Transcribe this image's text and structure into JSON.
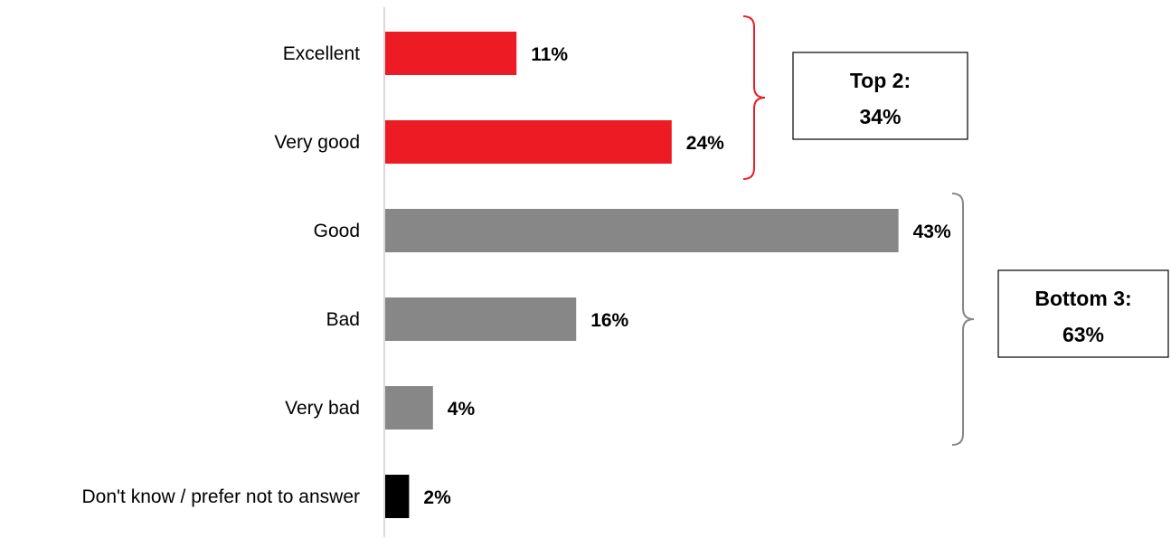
{
  "chart_data": {
    "type": "bar",
    "orientation": "horizontal",
    "categories": [
      "Excellent",
      "Very good",
      "Good",
      "Bad",
      "Very bad",
      "Don't know / prefer not to answer"
    ],
    "values": [
      11,
      24,
      43,
      16,
      4,
      2
    ],
    "value_labels": [
      "11%",
      "24%",
      "43%",
      "16%",
      "4%",
      "2%"
    ],
    "bar_colors": [
      "#ED1C24",
      "#ED1C24",
      "#878787",
      "#878787",
      "#878787",
      "#000000"
    ],
    "xlim": [
      0,
      50
    ],
    "grid": false,
    "legend": "none",
    "annotations": [
      {
        "name": "top-2",
        "line1": "Top 2:",
        "line2": "34%",
        "categories": [
          "Excellent",
          "Very good"
        ],
        "color": "#ED1C24"
      },
      {
        "name": "bottom-3",
        "line1": "Bottom 3:",
        "line2": "63%",
        "categories": [
          "Good",
          "Bad",
          "Very bad"
        ],
        "color": "#878787"
      }
    ]
  }
}
